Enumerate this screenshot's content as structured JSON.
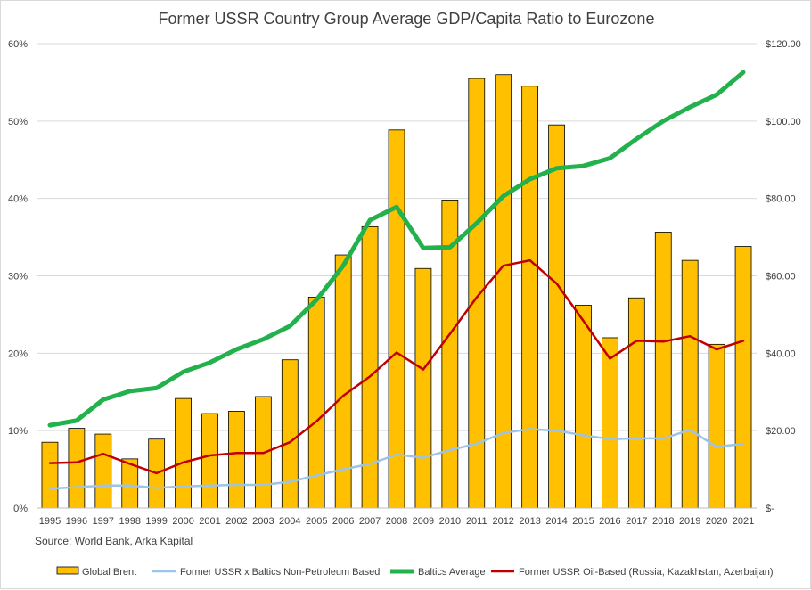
{
  "chart_data": {
    "type": "bar+line",
    "title": "Former USSR Country Group Average GDP/Capita Ratio to Eurozone",
    "source": "Source: World Bank, Arka Kapital",
    "categories": [
      "1995",
      "1996",
      "1997",
      "1998",
      "1999",
      "2000",
      "2001",
      "2002",
      "2003",
      "2004",
      "2005",
      "2006",
      "2007",
      "2008",
      "2009",
      "2010",
      "2011",
      "2012",
      "2013",
      "2014",
      "2015",
      "2016",
      "2017",
      "2018",
      "2019",
      "2020",
      "2021"
    ],
    "y_left": {
      "ticks": [
        "0%",
        "10%",
        "20%",
        "30%",
        "40%",
        "50%",
        "60%"
      ],
      "min": 0,
      "max": 0.6
    },
    "y_right": {
      "ticks": [
        "$-",
        "$20.00",
        "$40.00",
        "$60.00",
        "$80.00",
        "$100.00",
        "$120.00"
      ],
      "min": 0,
      "max": 120
    },
    "grid": "horizontal",
    "legend_position": "bottom",
    "bars": {
      "name": "Global Brent",
      "axis": "right",
      "color": "#FFC000",
      "values": [
        17.0,
        20.6,
        19.1,
        12.7,
        17.8,
        28.3,
        24.4,
        25.0,
        28.8,
        38.3,
        54.5,
        65.4,
        72.7,
        97.7,
        61.9,
        79.6,
        111.0,
        112.0,
        109.0,
        99.0,
        52.4,
        44.0,
        54.3,
        71.3,
        64.0,
        42.3,
        67.6
      ]
    },
    "series": [
      {
        "name": "Former USSR x Baltics Non-Petroleum Based",
        "axis": "left",
        "color": "#9DC3E6",
        "width": 2.5,
        "values": [
          0.025,
          0.027,
          0.029,
          0.029,
          0.026,
          0.028,
          0.029,
          0.03,
          0.03,
          0.034,
          0.042,
          0.05,
          0.057,
          0.069,
          0.065,
          0.075,
          0.083,
          0.097,
          0.102,
          0.1,
          0.094,
          0.089,
          0.09,
          0.09,
          0.101,
          0.079,
          0.083
        ]
      },
      {
        "name": "Baltics Average",
        "axis": "left",
        "color": "#22B14C",
        "width": 5,
        "values": [
          0.107,
          0.113,
          0.14,
          0.151,
          0.155,
          0.176,
          0.188,
          0.205,
          0.218,
          0.235,
          0.269,
          0.313,
          0.372,
          0.389,
          0.336,
          0.337,
          0.368,
          0.403,
          0.425,
          0.439,
          0.442,
          0.452,
          0.477,
          0.5,
          0.518,
          0.534,
          0.563
        ]
      },
      {
        "name": "Former USSR Oil-Based (Russia, Kazakhstan, Azerbaijan)",
        "axis": "left",
        "color": "#C00000",
        "width": 2.5,
        "values": [
          0.058,
          0.059,
          0.07,
          0.057,
          0.045,
          0.059,
          0.068,
          0.071,
          0.071,
          0.085,
          0.112,
          0.145,
          0.17,
          0.201,
          0.179,
          0.225,
          0.272,
          0.313,
          0.32,
          0.29,
          0.242,
          0.193,
          0.216,
          0.215,
          0.222,
          0.205,
          0.216
        ]
      }
    ]
  }
}
